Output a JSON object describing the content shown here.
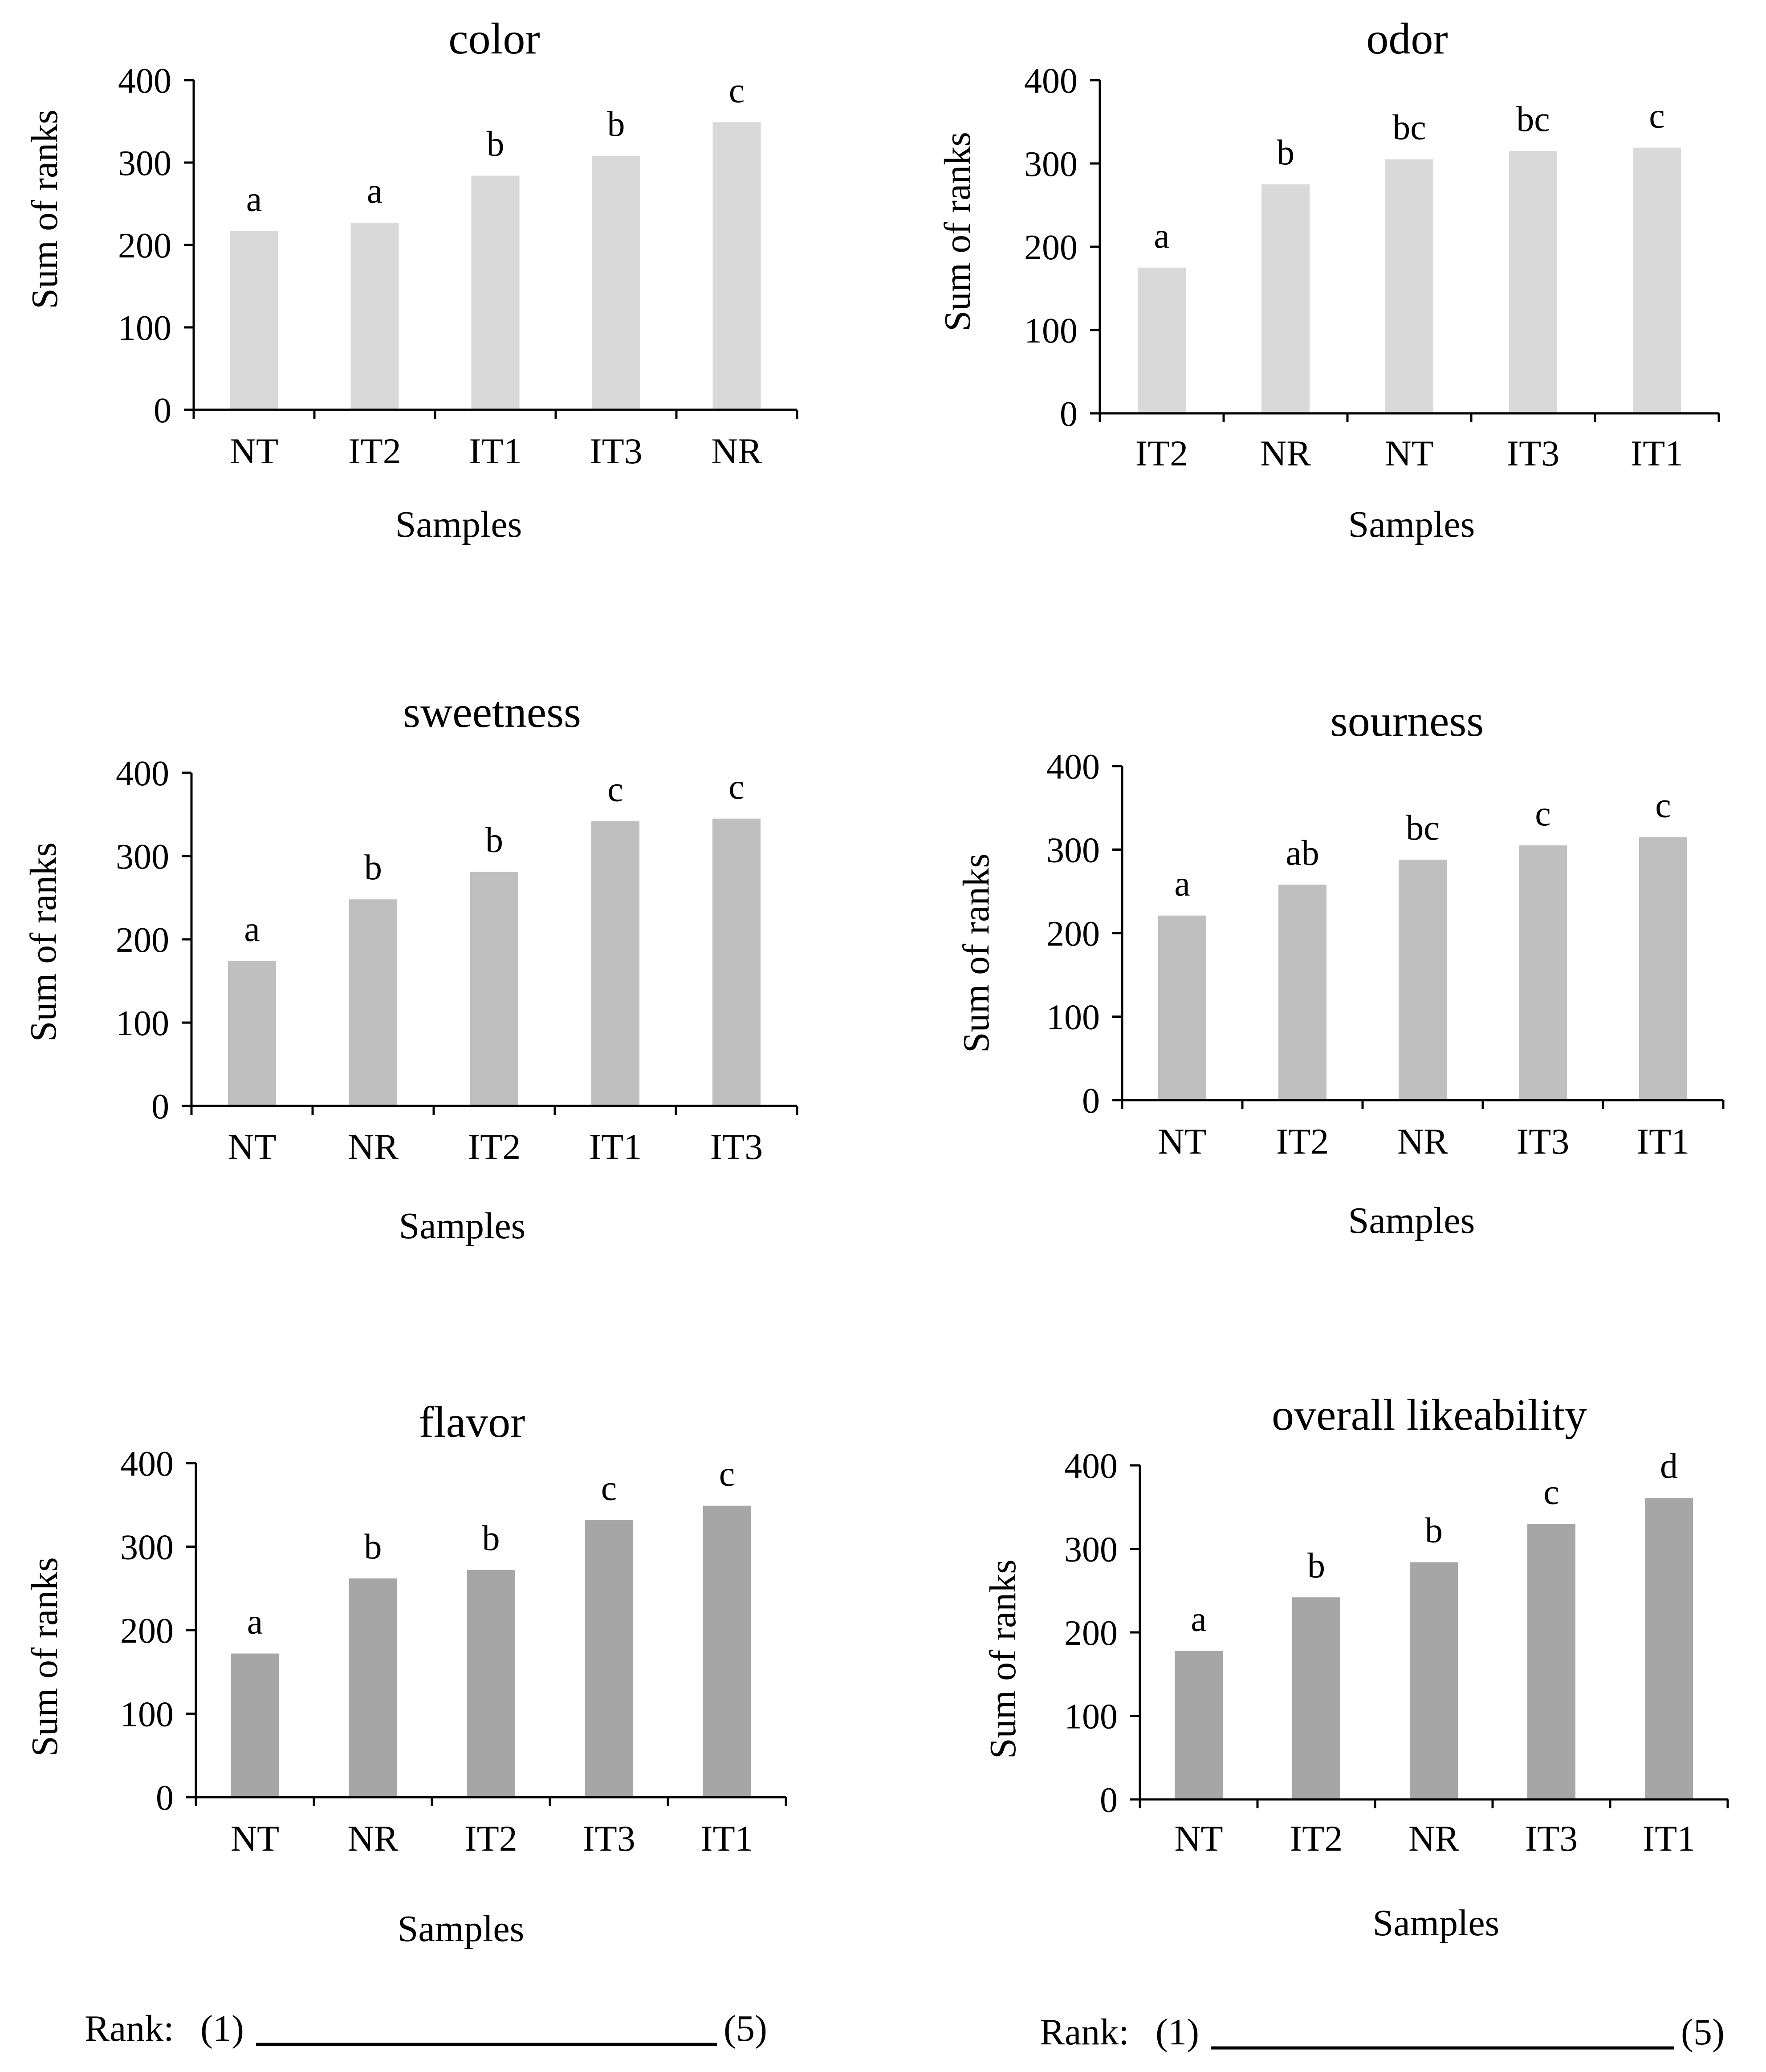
{
  "chart_data": [
    {
      "type": "bar",
      "title": "color",
      "xlabel": "Samples",
      "ylabel": "Sum of ranks",
      "ylim": [
        0,
        400
      ],
      "yticks": [
        "0",
        "100",
        "200",
        "300",
        "400"
      ],
      "categories": [
        "NT",
        "IT2",
        "IT1",
        "IT3",
        "NR"
      ],
      "values": [
        217,
        227,
        284,
        308,
        349
      ],
      "letters": [
        "a",
        "a",
        "b",
        "b",
        "c"
      ],
      "bar_color": "#d9d9d9"
    },
    {
      "type": "bar",
      "title": "odor",
      "xlabel": "Samples",
      "ylabel": "Sum of ranks",
      "ylim": [
        0,
        400
      ],
      "yticks": [
        "0",
        "100",
        "200",
        "300",
        "400"
      ],
      "categories": [
        "IT2",
        "NR",
        "NT",
        "IT3",
        "IT1"
      ],
      "values": [
        175,
        275,
        305,
        315,
        319
      ],
      "letters": [
        "a",
        "b",
        "bc",
        "bc",
        "c"
      ],
      "bar_color": "#d9d9d9"
    },
    {
      "type": "bar",
      "title": "sweetness",
      "xlabel": "Samples",
      "ylabel": "Sum of ranks",
      "ylim": [
        0,
        400
      ],
      "yticks": [
        "0",
        "100",
        "200",
        "300",
        "400"
      ],
      "categories": [
        "NT",
        "NR",
        "IT2",
        "IT1",
        "IT3"
      ],
      "values": [
        174,
        248,
        281,
        342,
        345
      ],
      "letters": [
        "a",
        "b",
        "b",
        "c",
        "c"
      ],
      "bar_color": "#bfbfbf"
    },
    {
      "type": "bar",
      "title": "sourness",
      "xlabel": "Samples",
      "ylabel": "Sum of ranks",
      "ylim": [
        0,
        400
      ],
      "yticks": [
        "0",
        "100",
        "200",
        "300",
        "400"
      ],
      "categories": [
        "NT",
        "IT2",
        "NR",
        "IT3",
        "IT1"
      ],
      "values": [
        221,
        258,
        288,
        305,
        315
      ],
      "letters": [
        "a",
        "ab",
        "bc",
        "c",
        "c"
      ],
      "bar_color": "#bfbfbf"
    },
    {
      "type": "bar",
      "title": "flavor",
      "xlabel": "Samples",
      "ylabel": "Sum of ranks",
      "ylim": [
        0,
        400
      ],
      "yticks": [
        "0",
        "100",
        "200",
        "300",
        "400"
      ],
      "categories": [
        "NT",
        "NR",
        "IT2",
        "IT3",
        "IT1"
      ],
      "values": [
        172,
        262,
        272,
        332,
        349
      ],
      "letters": [
        "a",
        "b",
        "b",
        "c",
        "c"
      ],
      "bar_color": "#a6a6a6"
    },
    {
      "type": "bar",
      "title": "overall likeability",
      "xlabel": "Samples",
      "ylabel": "Sum of ranks",
      "ylim": [
        0,
        400
      ],
      "yticks": [
        "0",
        "100",
        "200",
        "300",
        "400"
      ],
      "categories": [
        "NT",
        "IT2",
        "NR",
        "IT3",
        "IT1"
      ],
      "values": [
        178,
        242,
        284,
        330,
        361
      ],
      "letters": [
        "a",
        "b",
        "b",
        "c",
        "d"
      ],
      "bar_color": "#a6a6a6"
    }
  ],
  "rank_scale": [
    {
      "label": "Rank:",
      "low": "(1)",
      "high": "(5)"
    },
    {
      "label": "Rank:",
      "low": "(1)",
      "high": "(5)"
    }
  ]
}
